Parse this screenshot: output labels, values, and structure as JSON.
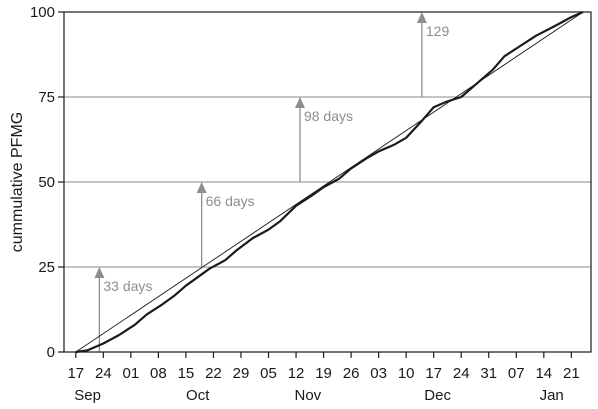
{
  "chart_data": {
    "type": "line",
    "title": "",
    "xlabel": "",
    "ylabel": "cummulative PFMG",
    "xlim": [
      "2012-09-14",
      "2013-01-26"
    ],
    "ylim": [
      0,
      100
    ],
    "y_ticks": [
      "0",
      "25",
      "50",
      "75",
      "100"
    ],
    "x_ticks": [
      {
        "date": "2012-09-17",
        "label": "17"
      },
      {
        "date": "2012-09-24",
        "label": "24"
      },
      {
        "date": "2012-10-01",
        "label": "01"
      },
      {
        "date": "2012-10-08",
        "label": "08"
      },
      {
        "date": "2012-10-15",
        "label": "15"
      },
      {
        "date": "2012-10-22",
        "label": "22"
      },
      {
        "date": "2012-10-29",
        "label": "29"
      },
      {
        "date": "2012-11-05",
        "label": "05"
      },
      {
        "date": "2012-11-12",
        "label": "12"
      },
      {
        "date": "2012-11-19",
        "label": "19"
      },
      {
        "date": "2012-11-26",
        "label": "26"
      },
      {
        "date": "2012-12-03",
        "label": "03"
      },
      {
        "date": "2012-12-10",
        "label": "10"
      },
      {
        "date": "2012-12-17",
        "label": "17"
      },
      {
        "date": "2012-12-24",
        "label": "24"
      },
      {
        "date": "2012-12-31",
        "label": "31"
      },
      {
        "date": "2013-01-07",
        "label": "07"
      },
      {
        "date": "2013-01-14",
        "label": "14"
      },
      {
        "date": "2013-01-21",
        "label": "21"
      }
    ],
    "months": [
      {
        "label": "Sep",
        "date": "2012-09-20"
      },
      {
        "label": "Oct",
        "date": "2012-10-18"
      },
      {
        "label": "Nov",
        "date": "2012-11-15"
      },
      {
        "label": "Dec",
        "date": "2012-12-18"
      },
      {
        "label": "Jan",
        "date": "2013-01-16"
      }
    ],
    "gridlines_y": [
      25,
      50,
      75
    ],
    "series": [
      {
        "points": [
          [
            "2012-09-17",
            0
          ],
          [
            "2012-09-20",
            0.5
          ],
          [
            "2012-09-24",
            2.5
          ],
          [
            "2012-09-28",
            5
          ],
          [
            "2012-10-02",
            8
          ],
          [
            "2012-10-05",
            11
          ],
          [
            "2012-10-09",
            14
          ],
          [
            "2012-10-12",
            16.5
          ],
          [
            "2012-10-15",
            19.5
          ],
          [
            "2012-10-18",
            22
          ],
          [
            "2012-10-21",
            24.5
          ],
          [
            "2012-10-25",
            27
          ],
          [
            "2012-10-28",
            30
          ],
          [
            "2012-11-01",
            33.5
          ],
          [
            "2012-11-05",
            36
          ],
          [
            "2012-11-08",
            38.5
          ],
          [
            "2012-11-12",
            43
          ],
          [
            "2012-11-16",
            46
          ],
          [
            "2012-11-19",
            48.5
          ],
          [
            "2012-11-23",
            51
          ],
          [
            "2012-11-26",
            54
          ],
          [
            "2012-11-30",
            57
          ],
          [
            "2012-12-03",
            59
          ],
          [
            "2012-12-07",
            61
          ],
          [
            "2012-12-10",
            63
          ],
          [
            "2012-12-14",
            68
          ],
          [
            "2012-12-17",
            72
          ],
          [
            "2012-12-20",
            73.5
          ],
          [
            "2012-12-24",
            75
          ],
          [
            "2012-12-27",
            78
          ],
          [
            "2013-01-01",
            83
          ],
          [
            "2013-01-04",
            87
          ],
          [
            "2013-01-08",
            90
          ],
          [
            "2013-01-12",
            93
          ],
          [
            "2013-01-17",
            96
          ],
          [
            "2013-01-21",
            98.5
          ],
          [
            "2013-01-24",
            100
          ]
        ]
      },
      {
        "style": "thin reference line",
        "points": [
          [
            "2012-09-17",
            0
          ],
          [
            "2013-01-24",
            100
          ]
        ]
      }
    ],
    "annotations": [
      {
        "date": "2012-09-23",
        "y_from": 0,
        "y_to": 25,
        "label": "33 days"
      },
      {
        "date": "2012-10-19",
        "y_from": 25,
        "y_to": 50,
        "label": "66 days"
      },
      {
        "date": "2012-11-13",
        "y_from": 50,
        "y_to": 75,
        "label": "98 days"
      },
      {
        "date": "2012-12-14",
        "y_from": 75,
        "y_to": 100,
        "label": "129"
      }
    ],
    "colors": {
      "line": "#1a1a1a",
      "grid": "#8a8a8a",
      "annotation": "#8e8e8e",
      "axis": "#1a1a1a"
    }
  }
}
